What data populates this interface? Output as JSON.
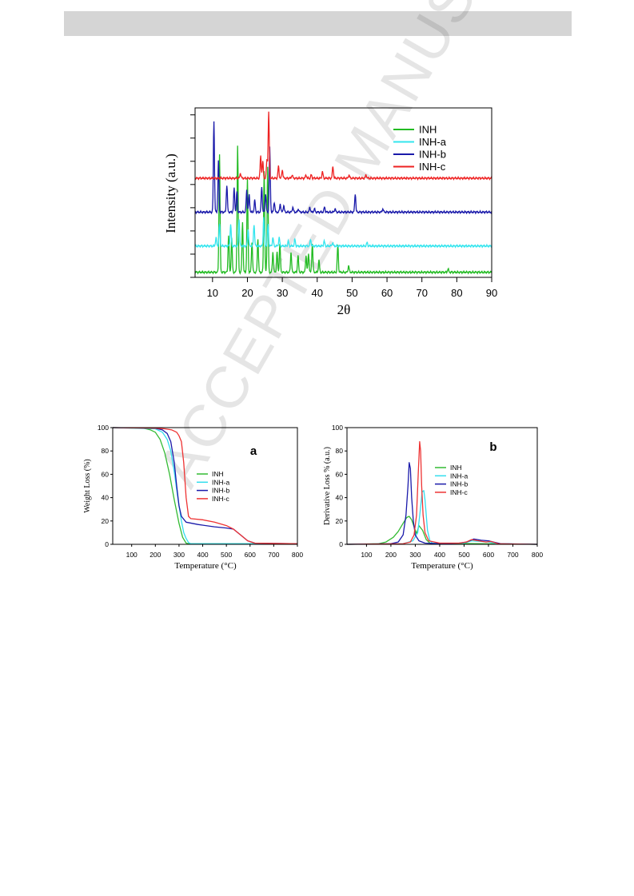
{
  "header": {
    "bar_color": "#d5d5d5"
  },
  "watermark": {
    "text": "ACCEPTED MANUSCRIPT"
  },
  "chart_data": [
    {
      "type": "line",
      "title": "",
      "xlabel": "2θ",
      "ylabel": "Intensity (a.u.)",
      "xlim": [
        5,
        90
      ],
      "xticks": [
        10,
        20,
        30,
        40,
        50,
        60,
        70,
        80,
        90
      ],
      "legend_position": "top-right",
      "series": [
        {
          "name": "INH",
          "color": "#22bb22",
          "baseline": 0.03,
          "peaks": [
            [
              12.0,
              0.7
            ],
            [
              14.6,
              0.22
            ],
            [
              15.5,
              0.2
            ],
            [
              17.2,
              0.75
            ],
            [
              18.6,
              0.3
            ],
            [
              20.0,
              0.55
            ],
            [
              21.3,
              0.18
            ],
            [
              23.0,
              0.2
            ],
            [
              24.8,
              0.6
            ],
            [
              25.8,
              0.62
            ],
            [
              27.3,
              0.12
            ],
            [
              28.5,
              0.12
            ],
            [
              29.3,
              0.17
            ],
            [
              32.5,
              0.12
            ],
            [
              34.5,
              0.1
            ],
            [
              36.8,
              0.1
            ],
            [
              37.5,
              0.11
            ],
            [
              38.6,
              0.17
            ],
            [
              40.5,
              0.07
            ],
            [
              45.9,
              0.16
            ],
            [
              49.0,
              0.04
            ],
            [
              77.5,
              0.02
            ]
          ]
        },
        {
          "name": "INH-a",
          "color": "#33e5ee",
          "baseline": 0.185,
          "peaks": [
            [
              11.0,
              0.05
            ],
            [
              12.0,
              0.13
            ],
            [
              15.2,
              0.13
            ],
            [
              17.6,
              0.16
            ],
            [
              20.2,
              0.1
            ],
            [
              21.9,
              0.13
            ],
            [
              24.7,
              0.17
            ],
            [
              25.9,
              0.13
            ],
            [
              27.3,
              0.05
            ],
            [
              29.1,
              0.05
            ],
            [
              31.7,
              0.03
            ],
            [
              33.6,
              0.04
            ],
            [
              38.1,
              0.04
            ],
            [
              42.0,
              0.03
            ],
            [
              44.4,
              0.02
            ],
            [
              54.3,
              0.02
            ]
          ]
        },
        {
          "name": "INH-b",
          "color": "#1a1aaa",
          "baseline": 0.385,
          "peaks": [
            [
              10.4,
              0.54
            ],
            [
              11.7,
              0.3
            ],
            [
              14.1,
              0.16
            ],
            [
              16.2,
              0.14
            ],
            [
              17.0,
              0.12
            ],
            [
              19.8,
              0.13
            ],
            [
              20.5,
              0.1
            ],
            [
              22.1,
              0.07
            ],
            [
              24.1,
              0.15
            ],
            [
              25.2,
              0.11
            ],
            [
              26.4,
              0.38
            ],
            [
              27.7,
              0.06
            ],
            [
              29.4,
              0.05
            ],
            [
              30.4,
              0.04
            ],
            [
              33.0,
              0.03
            ],
            [
              34.6,
              0.02
            ],
            [
              37.9,
              0.03
            ],
            [
              39.2,
              0.02
            ],
            [
              42.1,
              0.03
            ],
            [
              45.1,
              0.02
            ],
            [
              50.9,
              0.11
            ],
            [
              58.8,
              0.02
            ]
          ]
        },
        {
          "name": "INH-c",
          "color": "#ee2222",
          "baseline": 0.585,
          "peaks": [
            [
              18.0,
              0.03
            ],
            [
              23.8,
              0.13
            ],
            [
              24.4,
              0.1
            ],
            [
              25.6,
              0.11
            ],
            [
              26.1,
              0.39
            ],
            [
              28.9,
              0.07
            ],
            [
              30.0,
              0.05
            ],
            [
              32.8,
              0.02
            ],
            [
              36.8,
              0.02
            ],
            [
              38.3,
              0.02
            ],
            [
              41.5,
              0.04
            ],
            [
              44.5,
              0.07
            ],
            [
              49.1,
              0.02
            ],
            [
              54.0,
              0.02
            ]
          ]
        }
      ]
    },
    {
      "type": "line",
      "panel_label": "a",
      "title": "",
      "xlabel": "Temperature (°C)",
      "ylabel": "Weight Loss (%)",
      "xlim": [
        20,
        800
      ],
      "ylim": [
        0,
        100
      ],
      "xticks": [
        100,
        200,
        300,
        400,
        500,
        600,
        700,
        800
      ],
      "yticks": [
        0,
        20,
        40,
        60,
        80,
        100
      ],
      "legend_position": "center-right",
      "series": [
        {
          "name": "INH",
          "color": "#33bb33",
          "x": [
            20,
            150,
            180,
            200,
            220,
            240,
            260,
            280,
            300,
            315,
            330,
            340,
            800
          ],
          "y": [
            100,
            99.5,
            98,
            96,
            90,
            78,
            60,
            38,
            18,
            6,
            1,
            0.5,
            0.5
          ]
        },
        {
          "name": "INH-a",
          "color": "#33ddee",
          "x": [
            20,
            200,
            230,
            250,
            265,
            280,
            295,
            310,
            320,
            330,
            340,
            350,
            800
          ],
          "y": [
            100,
            99,
            96,
            90,
            80,
            62,
            40,
            20,
            10,
            5,
            1.5,
            0.5,
            0.5
          ]
        },
        {
          "name": "INH-b",
          "color": "#1a1aaa",
          "x": [
            20,
            200,
            230,
            250,
            265,
            280,
            290,
            300,
            310,
            330,
            380,
            450,
            500,
            530,
            560,
            590,
            620,
            800
          ],
          "y": [
            100,
            99.5,
            98,
            95,
            88,
            70,
            50,
            33,
            24,
            19,
            17,
            15,
            14,
            13,
            8,
            3,
            1,
            0.5
          ]
        },
        {
          "name": "INH-c",
          "color": "#ee3333",
          "x": [
            20,
            200,
            240,
            270,
            290,
            300,
            310,
            320,
            330,
            340,
            350,
            400,
            450,
            500,
            530,
            560,
            590,
            620,
            800
          ],
          "y": [
            100,
            99.5,
            99,
            98,
            96,
            93,
            88,
            70,
            40,
            24,
            22,
            21,
            19,
            16,
            13,
            8,
            3,
            1,
            0.5
          ]
        }
      ]
    },
    {
      "type": "line",
      "panel_label": "b",
      "title": "",
      "xlabel": "Temperature (°C)",
      "ylabel": "Derivative Loss % (a.u.)",
      "xlim": [
        20,
        800
      ],
      "ylim": [
        0,
        100
      ],
      "xticks": [
        100,
        200,
        300,
        400,
        500,
        600,
        700,
        800
      ],
      "yticks": [
        0,
        20,
        40,
        60,
        80,
        100
      ],
      "legend_position": "center-right",
      "series": [
        {
          "name": "INH",
          "color": "#33bb33",
          "x": [
            20,
            150,
            180,
            210,
            230,
            250,
            265,
            275,
            285,
            295,
            305,
            315,
            330,
            345,
            360,
            800
          ],
          "y": [
            0,
            0.5,
            2,
            6,
            11,
            18,
            23,
            24,
            21,
            15,
            9,
            16,
            12,
            4,
            1,
            0
          ]
        },
        {
          "name": "INH-a",
          "color": "#33ddee",
          "x": [
            20,
            250,
            290,
            310,
            320,
            328,
            335,
            340,
            350,
            360,
            370,
            500,
            530,
            600,
            640,
            800
          ],
          "y": [
            0,
            0.5,
            3,
            10,
            28,
            45,
            46,
            38,
            12,
            3,
            1,
            1,
            3,
            2,
            0.5,
            0
          ]
        },
        {
          "name": "INH-b",
          "color": "#1a1aaa",
          "x": [
            20,
            200,
            230,
            250,
            262,
            270,
            275,
            280,
            285,
            292,
            300,
            315,
            340,
            400,
            480,
            510,
            540,
            570,
            600,
            620,
            650,
            800
          ],
          "y": [
            0,
            0.5,
            2,
            8,
            25,
            50,
            70,
            65,
            40,
            20,
            8,
            3,
            1,
            0.5,
            1,
            2,
            4.5,
            3.5,
            3,
            2,
            0.5,
            0
          ]
        },
        {
          "name": "INH-c",
          "color": "#ee3333",
          "x": [
            20,
            250,
            280,
            295,
            305,
            312,
            318,
            322,
            326,
            332,
            340,
            355,
            400,
            480,
            510,
            530,
            560,
            590,
            610,
            640,
            800
          ],
          "y": [
            0,
            0.5,
            2,
            8,
            25,
            60,
            88,
            80,
            50,
            25,
            10,
            3,
            1,
            1,
            2,
            4,
            3,
            2,
            2.5,
            0.5,
            0
          ]
        }
      ]
    }
  ]
}
